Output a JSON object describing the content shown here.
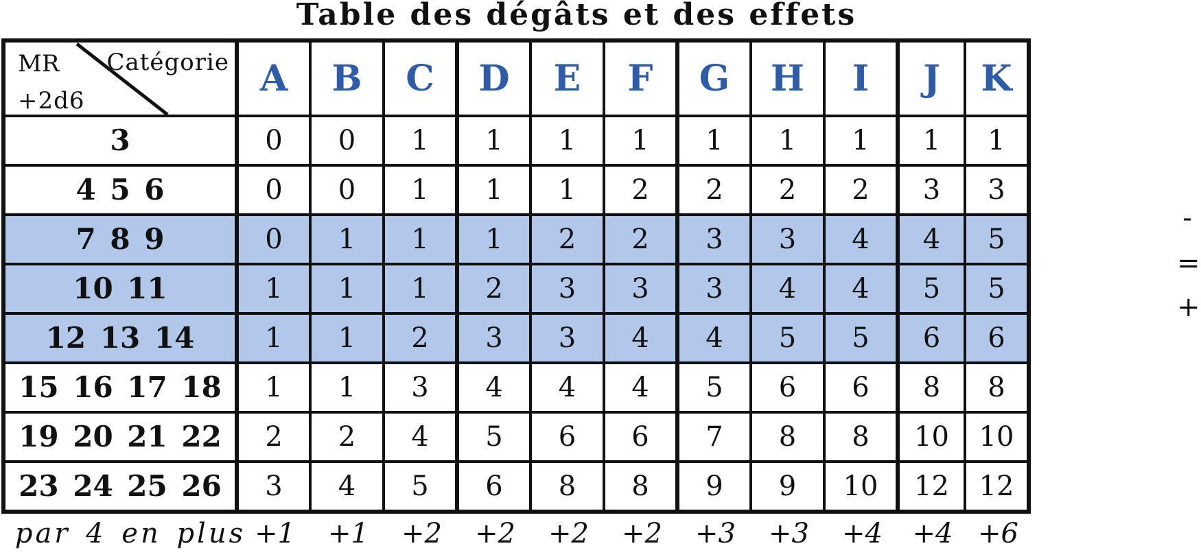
{
  "title": "Table des dégâts et des effets",
  "corner": {
    "mr": "MR",
    "dice": "+2d6",
    "category": "Catégorie"
  },
  "categories": [
    "A",
    "B",
    "C",
    "D",
    "E",
    "F",
    "G",
    "H",
    "I",
    "J",
    "K"
  ],
  "rows": [
    {
      "label": "3",
      "values": [
        "0",
        "0",
        "1",
        "1",
        "1",
        "1",
        "1",
        "1",
        "1",
        "1",
        "1"
      ]
    },
    {
      "label": "4 5 6",
      "values": [
        "0",
        "0",
        "1",
        "1",
        "1",
        "2",
        "2",
        "2",
        "2",
        "3",
        "3"
      ]
    },
    {
      "label": "7 8 9",
      "values": [
        "0",
        "1",
        "1",
        "1",
        "2",
        "2",
        "3",
        "3",
        "4",
        "4",
        "5"
      ]
    },
    {
      "label": "10 11",
      "values": [
        "1",
        "1",
        "1",
        "2",
        "3",
        "3",
        "3",
        "4",
        "4",
        "5",
        "5"
      ]
    },
    {
      "label": "12 13 14",
      "values": [
        "1",
        "1",
        "2",
        "3",
        "3",
        "4",
        "4",
        "5",
        "5",
        "6",
        "6"
      ]
    },
    {
      "label": "15 16 17 18",
      "values": [
        "1",
        "1",
        "3",
        "4",
        "4",
        "4",
        "5",
        "6",
        "6",
        "8",
        "8"
      ]
    },
    {
      "label": "19 20 21 22",
      "values": [
        "2",
        "2",
        "4",
        "5",
        "6",
        "6",
        "7",
        "8",
        "8",
        "10",
        "10"
      ]
    },
    {
      "label": "23 24 25 26",
      "values": [
        "3",
        "4",
        "5",
        "6",
        "8",
        "8",
        "9",
        "9",
        "10",
        "12",
        "12"
      ]
    }
  ],
  "footer": {
    "label": "par 4 en plus",
    "values": [
      "+1",
      "+1",
      "+2",
      "+2",
      "+2",
      "+2",
      "+3",
      "+3",
      "+4",
      "+4",
      "+6"
    ]
  },
  "side_marks": [
    "-",
    "=",
    "+"
  ],
  "highlight_color": "#b1c8ea",
  "header_color": "#2f5ca8"
}
